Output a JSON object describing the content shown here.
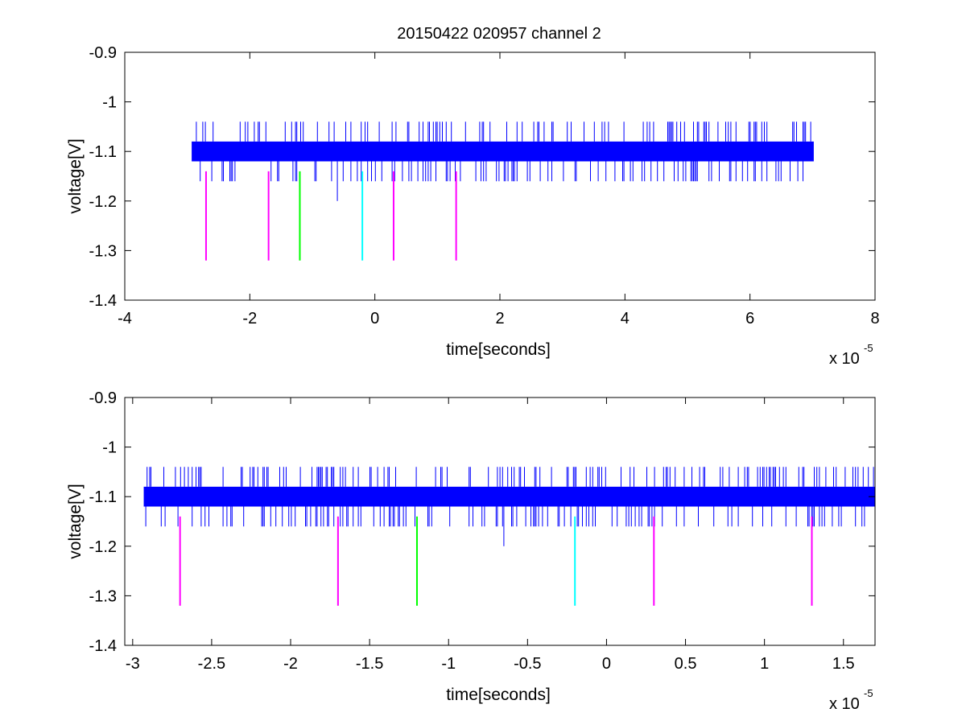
{
  "figure_title": "20150422 020957 channel 2",
  "colors": {
    "signal": "#0000ff",
    "magenta": "#ff00ff",
    "green": "#00ff00",
    "cyan": "#00ffff"
  },
  "chart_data": [
    {
      "type": "line",
      "title": "20150422 020957 channel 2",
      "xlabel": "time[seconds]",
      "ylabel": "voltage[V]",
      "x_multiplier": "x 10",
      "x_multiplier_exp": "-5",
      "xlim": [
        -4,
        8
      ],
      "ylim": [
        -1.4,
        -0.9
      ],
      "xticks": [
        -4,
        -2,
        0,
        2,
        4,
        6,
        8
      ],
      "xtick_labels": [
        "-4",
        "-2",
        "0",
        "2",
        "4",
        "6",
        "8"
      ],
      "yticks": [
        -1.4,
        -1.3,
        -1.2,
        -1.1,
        -1,
        -0.9
      ],
      "ytick_labels": [
        "-1.4",
        "-1.3",
        "-1.2",
        "-1.1",
        "-1",
        "-0.9"
      ],
      "signal": {
        "color": "#0000ff",
        "x_range": [
          -2.93,
          7.02
        ],
        "band": [
          -1.12,
          -1.08
        ],
        "spike_high": -1.04,
        "spike_low": -1.16,
        "dip": {
          "x": -0.6,
          "y": -1.2
        }
      },
      "markers": [
        {
          "x": -2.7,
          "y_top": -1.14,
          "y_bottom": -1.32,
          "color": "#ff00ff"
        },
        {
          "x": -1.7,
          "y_top": -1.14,
          "y_bottom": -1.32,
          "color": "#ff00ff"
        },
        {
          "x": -1.2,
          "y_top": -1.14,
          "y_bottom": -1.32,
          "color": "#00ff00"
        },
        {
          "x": -0.2,
          "y_top": -1.14,
          "y_bottom": -1.32,
          "color": "#00ffff"
        },
        {
          "x": 0.3,
          "y_top": -1.14,
          "y_bottom": -1.32,
          "color": "#ff00ff"
        },
        {
          "x": 1.3,
          "y_top": -1.14,
          "y_bottom": -1.32,
          "color": "#ff00ff"
        }
      ]
    },
    {
      "type": "line",
      "title": "",
      "xlabel": "time[seconds]",
      "ylabel": "voltage[V]",
      "x_multiplier": "x 10",
      "x_multiplier_exp": "-5",
      "xlim": [
        -3.05,
        1.7
      ],
      "ylim": [
        -1.4,
        -0.9
      ],
      "xticks": [
        -3,
        -2.5,
        -2,
        -1.5,
        -1,
        -0.5,
        0,
        0.5,
        1,
        1.5
      ],
      "xtick_labels": [
        "-3",
        "-2.5",
        "-2",
        "-1.5",
        "-1",
        "-0.5",
        "0",
        "0.5",
        "1",
        "1.5"
      ],
      "yticks": [
        -1.4,
        -1.3,
        -1.2,
        -1.1,
        -1,
        -0.9
      ],
      "ytick_labels": [
        "-1.4",
        "-1.3",
        "-1.2",
        "-1.1",
        "-1",
        "-0.9"
      ],
      "signal": {
        "color": "#0000ff",
        "x_range": [
          -2.93,
          1.7
        ],
        "band": [
          -1.12,
          -1.08
        ],
        "spike_high": -1.04,
        "spike_low": -1.16,
        "dip": {
          "x": -0.65,
          "y": -1.2
        }
      },
      "markers": [
        {
          "x": -2.7,
          "y_top": -1.14,
          "y_bottom": -1.32,
          "color": "#ff00ff"
        },
        {
          "x": -1.7,
          "y_top": -1.14,
          "y_bottom": -1.32,
          "color": "#ff00ff"
        },
        {
          "x": -1.2,
          "y_top": -1.14,
          "y_bottom": -1.32,
          "color": "#00ff00"
        },
        {
          "x": -0.2,
          "y_top": -1.14,
          "y_bottom": -1.32,
          "color": "#00ffff"
        },
        {
          "x": 0.3,
          "y_top": -1.14,
          "y_bottom": -1.32,
          "color": "#ff00ff"
        },
        {
          "x": 1.3,
          "y_top": -1.14,
          "y_bottom": -1.32,
          "color": "#ff00ff"
        }
      ]
    }
  ]
}
